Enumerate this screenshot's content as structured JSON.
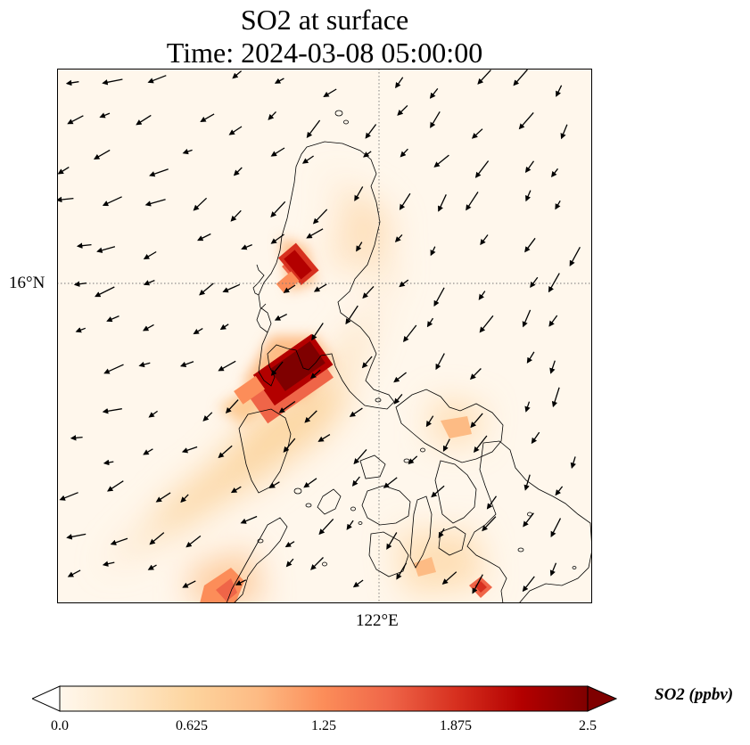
{
  "title": {
    "line1": "SO2 at surface",
    "line2": "Time: 2024-03-08 05:00:00"
  },
  "map": {
    "lat_tick": "16°N",
    "lon_tick": "122°E",
    "gridline_style": "dotted"
  },
  "colorbar": {
    "label": "SO2 (ppbv)",
    "ticks": [
      "0.0",
      "0.625",
      "1.25",
      "1.875",
      "2.5"
    ],
    "min": 0.0,
    "max": 2.5,
    "colormap": "OrRd",
    "extend": "both",
    "colors": [
      "#fff7ec",
      "#fee8c8",
      "#fdd49e",
      "#fdbb84",
      "#fc8d59",
      "#ef6548",
      "#d7301f",
      "#b30000",
      "#7f0000"
    ]
  },
  "hotspots": [
    {
      "name": "hotspot-north",
      "value": 2.2
    },
    {
      "name": "hotspot-central",
      "value": 2.5
    },
    {
      "name": "hotspot-southwest",
      "value": 1.4
    },
    {
      "name": "hotspot-southeast",
      "value": 1.6
    }
  ]
}
